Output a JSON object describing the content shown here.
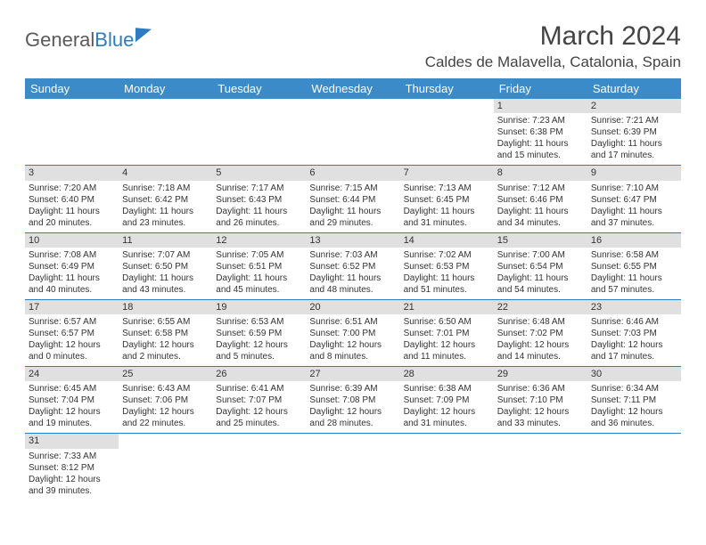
{
  "logo": {
    "text1": "General",
    "text2": "Blue"
  },
  "title": "March 2024",
  "location": "Caldes de Malavella, Catalonia, Spain",
  "colors": {
    "header_bg": "#3b8bc8",
    "header_fg": "#ffffff",
    "daynum_bg": "#e0e0e0",
    "border": "#2d7bc0",
    "text": "#333333"
  },
  "weekdays": [
    "Sunday",
    "Monday",
    "Tuesday",
    "Wednesday",
    "Thursday",
    "Friday",
    "Saturday"
  ],
  "weeks": [
    [
      {
        "empty": true
      },
      {
        "empty": true
      },
      {
        "empty": true
      },
      {
        "empty": true
      },
      {
        "empty": true
      },
      {
        "day": "1",
        "sunrise": "Sunrise: 7:23 AM",
        "sunset": "Sunset: 6:38 PM",
        "daylight1": "Daylight: 11 hours",
        "daylight2": "and 15 minutes."
      },
      {
        "day": "2",
        "sunrise": "Sunrise: 7:21 AM",
        "sunset": "Sunset: 6:39 PM",
        "daylight1": "Daylight: 11 hours",
        "daylight2": "and 17 minutes."
      }
    ],
    [
      {
        "day": "3",
        "sunrise": "Sunrise: 7:20 AM",
        "sunset": "Sunset: 6:40 PM",
        "daylight1": "Daylight: 11 hours",
        "daylight2": "and 20 minutes."
      },
      {
        "day": "4",
        "sunrise": "Sunrise: 7:18 AM",
        "sunset": "Sunset: 6:42 PM",
        "daylight1": "Daylight: 11 hours",
        "daylight2": "and 23 minutes."
      },
      {
        "day": "5",
        "sunrise": "Sunrise: 7:17 AM",
        "sunset": "Sunset: 6:43 PM",
        "daylight1": "Daylight: 11 hours",
        "daylight2": "and 26 minutes."
      },
      {
        "day": "6",
        "sunrise": "Sunrise: 7:15 AM",
        "sunset": "Sunset: 6:44 PM",
        "daylight1": "Daylight: 11 hours",
        "daylight2": "and 29 minutes."
      },
      {
        "day": "7",
        "sunrise": "Sunrise: 7:13 AM",
        "sunset": "Sunset: 6:45 PM",
        "daylight1": "Daylight: 11 hours",
        "daylight2": "and 31 minutes."
      },
      {
        "day": "8",
        "sunrise": "Sunrise: 7:12 AM",
        "sunset": "Sunset: 6:46 PM",
        "daylight1": "Daylight: 11 hours",
        "daylight2": "and 34 minutes."
      },
      {
        "day": "9",
        "sunrise": "Sunrise: 7:10 AM",
        "sunset": "Sunset: 6:47 PM",
        "daylight1": "Daylight: 11 hours",
        "daylight2": "and 37 minutes."
      }
    ],
    [
      {
        "day": "10",
        "sunrise": "Sunrise: 7:08 AM",
        "sunset": "Sunset: 6:49 PM",
        "daylight1": "Daylight: 11 hours",
        "daylight2": "and 40 minutes."
      },
      {
        "day": "11",
        "sunrise": "Sunrise: 7:07 AM",
        "sunset": "Sunset: 6:50 PM",
        "daylight1": "Daylight: 11 hours",
        "daylight2": "and 43 minutes."
      },
      {
        "day": "12",
        "sunrise": "Sunrise: 7:05 AM",
        "sunset": "Sunset: 6:51 PM",
        "daylight1": "Daylight: 11 hours",
        "daylight2": "and 45 minutes."
      },
      {
        "day": "13",
        "sunrise": "Sunrise: 7:03 AM",
        "sunset": "Sunset: 6:52 PM",
        "daylight1": "Daylight: 11 hours",
        "daylight2": "and 48 minutes."
      },
      {
        "day": "14",
        "sunrise": "Sunrise: 7:02 AM",
        "sunset": "Sunset: 6:53 PM",
        "daylight1": "Daylight: 11 hours",
        "daylight2": "and 51 minutes."
      },
      {
        "day": "15",
        "sunrise": "Sunrise: 7:00 AM",
        "sunset": "Sunset: 6:54 PM",
        "daylight1": "Daylight: 11 hours",
        "daylight2": "and 54 minutes."
      },
      {
        "day": "16",
        "sunrise": "Sunrise: 6:58 AM",
        "sunset": "Sunset: 6:55 PM",
        "daylight1": "Daylight: 11 hours",
        "daylight2": "and 57 minutes."
      }
    ],
    [
      {
        "day": "17",
        "sunrise": "Sunrise: 6:57 AM",
        "sunset": "Sunset: 6:57 PM",
        "daylight1": "Daylight: 12 hours",
        "daylight2": "and 0 minutes."
      },
      {
        "day": "18",
        "sunrise": "Sunrise: 6:55 AM",
        "sunset": "Sunset: 6:58 PM",
        "daylight1": "Daylight: 12 hours",
        "daylight2": "and 2 minutes."
      },
      {
        "day": "19",
        "sunrise": "Sunrise: 6:53 AM",
        "sunset": "Sunset: 6:59 PM",
        "daylight1": "Daylight: 12 hours",
        "daylight2": "and 5 minutes."
      },
      {
        "day": "20",
        "sunrise": "Sunrise: 6:51 AM",
        "sunset": "Sunset: 7:00 PM",
        "daylight1": "Daylight: 12 hours",
        "daylight2": "and 8 minutes."
      },
      {
        "day": "21",
        "sunrise": "Sunrise: 6:50 AM",
        "sunset": "Sunset: 7:01 PM",
        "daylight1": "Daylight: 12 hours",
        "daylight2": "and 11 minutes."
      },
      {
        "day": "22",
        "sunrise": "Sunrise: 6:48 AM",
        "sunset": "Sunset: 7:02 PM",
        "daylight1": "Daylight: 12 hours",
        "daylight2": "and 14 minutes."
      },
      {
        "day": "23",
        "sunrise": "Sunrise: 6:46 AM",
        "sunset": "Sunset: 7:03 PM",
        "daylight1": "Daylight: 12 hours",
        "daylight2": "and 17 minutes."
      }
    ],
    [
      {
        "day": "24",
        "sunrise": "Sunrise: 6:45 AM",
        "sunset": "Sunset: 7:04 PM",
        "daylight1": "Daylight: 12 hours",
        "daylight2": "and 19 minutes."
      },
      {
        "day": "25",
        "sunrise": "Sunrise: 6:43 AM",
        "sunset": "Sunset: 7:06 PM",
        "daylight1": "Daylight: 12 hours",
        "daylight2": "and 22 minutes."
      },
      {
        "day": "26",
        "sunrise": "Sunrise: 6:41 AM",
        "sunset": "Sunset: 7:07 PM",
        "daylight1": "Daylight: 12 hours",
        "daylight2": "and 25 minutes."
      },
      {
        "day": "27",
        "sunrise": "Sunrise: 6:39 AM",
        "sunset": "Sunset: 7:08 PM",
        "daylight1": "Daylight: 12 hours",
        "daylight2": "and 28 minutes."
      },
      {
        "day": "28",
        "sunrise": "Sunrise: 6:38 AM",
        "sunset": "Sunset: 7:09 PM",
        "daylight1": "Daylight: 12 hours",
        "daylight2": "and 31 minutes."
      },
      {
        "day": "29",
        "sunrise": "Sunrise: 6:36 AM",
        "sunset": "Sunset: 7:10 PM",
        "daylight1": "Daylight: 12 hours",
        "daylight2": "and 33 minutes."
      },
      {
        "day": "30",
        "sunrise": "Sunrise: 6:34 AM",
        "sunset": "Sunset: 7:11 PM",
        "daylight1": "Daylight: 12 hours",
        "daylight2": "and 36 minutes."
      }
    ],
    [
      {
        "day": "31",
        "sunrise": "Sunrise: 7:33 AM",
        "sunset": "Sunset: 8:12 PM",
        "daylight1": "Daylight: 12 hours",
        "daylight2": "and 39 minutes."
      },
      {
        "empty": true
      },
      {
        "empty": true
      },
      {
        "empty": true
      },
      {
        "empty": true
      },
      {
        "empty": true
      },
      {
        "empty": true
      }
    ]
  ]
}
